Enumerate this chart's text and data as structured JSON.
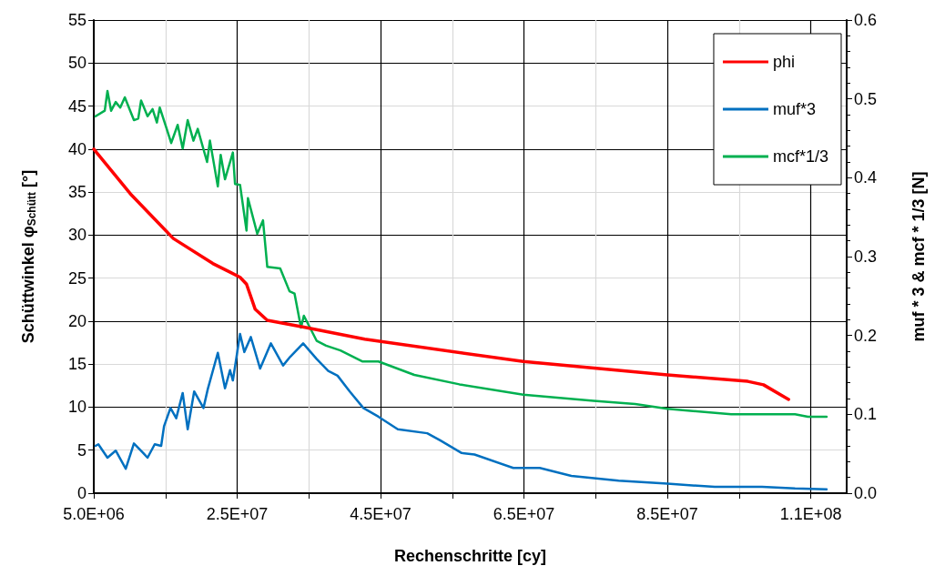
{
  "chart_data": {
    "type": "line",
    "xlabel": "Rechenschritte [cy]",
    "ylabel": "Schüttwinkel φ$_{Schütt}$ [°]",
    "y2label": "muf * 3 & mcf * 1/3 [N]",
    "xlim": [
      5000000.0,
      110000000.0
    ],
    "xticks": [
      {
        "value": 5000000.0,
        "label": "5.0E+06"
      },
      {
        "value": 25000000.0,
        "label": "2.5E+07"
      },
      {
        "value": 45000000.0,
        "label": "4.5E+07"
      },
      {
        "value": 65000000.0,
        "label": "6.5E+07"
      },
      {
        "value": 85000000.0,
        "label": "8.5E+07"
      },
      {
        "value": 105000000.0,
        "label": "1.1E+08"
      }
    ],
    "ylim": [
      0,
      55
    ],
    "yticks": [
      0,
      5,
      10,
      15,
      20,
      25,
      30,
      35,
      40,
      45,
      50,
      55
    ],
    "y2lim": [
      0,
      0.6
    ],
    "y2ticks": [
      {
        "value": 0,
        "label": "0.0"
      },
      0.1,
      0.2,
      0.3,
      0.4,
      0.5,
      0.6
    ],
    "grid": true,
    "legend": "top right",
    "marker": "none",
    "line_style": "solid",
    "series": [
      {
        "name": "phi",
        "color": "#ff0000",
        "x": [
          5000000.0,
          10100000.0,
          16100000.0,
          21600000.0,
          25400000.0,
          26300000.0,
          27500000.0,
          29200000.0,
          34300000.0,
          42800000.0,
          64900000.0,
          85000000.0,
          96200000.0,
          98400000.0,
          101900000.0
        ],
        "values": [
          40,
          34.8,
          29.6,
          26.7,
          25.1,
          24.3,
          21.4,
          20.1,
          19.3,
          17.9,
          15.3,
          13.75,
          13.0,
          12.6,
          10.9
        ]
      },
      {
        "name": "muf*3",
        "color": "#0070c0",
        "axis": "y2",
        "x": [
          5250000.0,
          5640000.0,
          6910000.0,
          8060000.0,
          9460000.0,
          10600000.0,
          11900000.0,
          12500000.0,
          13500000.0,
          14400000.0,
          14800000.0,
          15700000.0,
          16500000.0,
          17400000.0,
          18100000.0,
          19000000.0,
          20300000.0,
          20900000.0,
          22300000.0,
          23300000.0,
          24000000.0,
          24400000.0,
          25400000.0,
          26000000.0,
          26900000.0,
          28200000.0,
          29700000.0,
          31400000.0,
          32400000.0,
          34200000.0,
          36100000.0,
          37700000.0,
          39000000.0,
          40700000.0,
          42600000.0,
          44700000.0,
          47400000.0,
          51500000.0,
          53300000.0,
          56300000.0,
          58100000.0,
          63500000.0,
          67200000.0,
          71600000.0,
          78200000.0,
          85000000.0,
          91600000.0,
          98200000.0,
          102800000.0,
          107200000.0
        ],
        "values": [
          0.06,
          0.062,
          0.045,
          0.054,
          0.031,
          0.063,
          0.051,
          0.045,
          0.062,
          0.06,
          0.085,
          0.108,
          0.095,
          0.127,
          0.081,
          0.129,
          0.108,
          0.132,
          0.178,
          0.133,
          0.156,
          0.143,
          0.202,
          0.179,
          0.198,
          0.158,
          0.19,
          0.162,
          0.173,
          0.19,
          0.17,
          0.155,
          0.149,
          0.129,
          0.108,
          0.097,
          0.081,
          0.076,
          0.067,
          0.051,
          0.049,
          0.032,
          0.032,
          0.022,
          0.016,
          0.012,
          0.008,
          0.008,
          0.006,
          0.005
        ]
      },
      {
        "name": "mcf*1/3",
        "color": "#00b050",
        "axis": "y2",
        "x": [
          5250000.0,
          6530000.0,
          6910000.0,
          7420000.0,
          8060000.0,
          8690000.0,
          9330000.0,
          10600000.0,
          11200000.0,
          11600000.0,
          12500000.0,
          13200000.0,
          13800000.0,
          14200000.0,
          15100000.0,
          15800000.0,
          16700000.0,
          17400000.0,
          18100000.0,
          18900000.0,
          19500000.0,
          20800000.0,
          21200000.0,
          22300000.0,
          22700000.0,
          23300000.0,
          24400000.0,
          24700000.0,
          25400000.0,
          26300000.0,
          26500000.0,
          27800000.0,
          28600000.0,
          29200000.0,
          31000000.0,
          32300000.0,
          33000000.0,
          33900000.0,
          34300000.0,
          36100000.0,
          37400000.0,
          39400000.0,
          42500000.0,
          44700000.0,
          49700000.0,
          56000000.0,
          64900000.0,
          74700000.0,
          80500000.0,
          85000000.0,
          93900000.0,
          102800000.0,
          104600000.0,
          107200000.0
        ],
        "values": [
          0.478,
          0.485,
          0.51,
          0.485,
          0.496,
          0.489,
          0.502,
          0.473,
          0.475,
          0.498,
          0.478,
          0.487,
          0.47,
          0.489,
          0.464,
          0.444,
          0.467,
          0.437,
          0.473,
          0.447,
          0.462,
          0.42,
          0.447,
          0.389,
          0.429,
          0.398,
          0.432,
          0.392,
          0.391,
          0.333,
          0.374,
          0.329,
          0.346,
          0.287,
          0.285,
          0.256,
          0.253,
          0.21,
          0.225,
          0.193,
          0.187,
          0.181,
          0.167,
          0.167,
          0.15,
          0.138,
          0.125,
          0.117,
          0.113,
          0.107,
          0.1,
          0.1,
          0.097,
          0.097
        ]
      }
    ]
  }
}
